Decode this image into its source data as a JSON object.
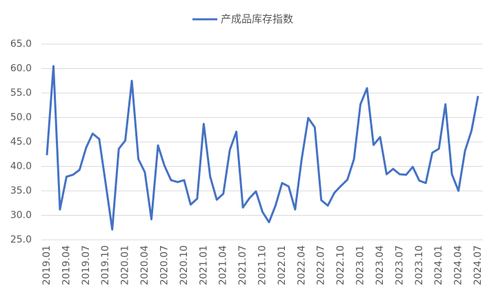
{
  "chart_data": {
    "type": "line",
    "categories": [
      "2019.01",
      null,
      null,
      "2019.04",
      null,
      null,
      "2019.07",
      null,
      null,
      "2019.10",
      null,
      null,
      "2020.01",
      null,
      null,
      "2020.04",
      null,
      null,
      "2020.07",
      null,
      null,
      "2020.10",
      null,
      null,
      "2021.01",
      null,
      null,
      "2021.04",
      null,
      null,
      "2021.07",
      null,
      null,
      "2021.10",
      null,
      null,
      "2022.01",
      null,
      null,
      "2022.04",
      null,
      null,
      "2022.07",
      null,
      null,
      "2022.10",
      null,
      null,
      "2023.01",
      null,
      null,
      "2023.04",
      null,
      null,
      "2023.07",
      null,
      null,
      "2023.10",
      null,
      null,
      "2024.01",
      null,
      null,
      "2024.04",
      null,
      null,
      "2024.07"
    ],
    "series": [
      {
        "name": "产成品库存指数",
        "color": "#4472c4",
        "values": [
          42.3,
          60.5,
          31.2,
          37.9,
          38.3,
          39.3,
          43.8,
          46.7,
          45.6,
          36.5,
          27.1,
          43.6,
          45.3,
          57.5,
          41.5,
          38.8,
          29.2,
          44.3,
          40.1,
          37.2,
          36.8,
          37.2,
          32.2,
          33.4,
          48.7,
          37.9,
          33.2,
          34.4,
          43.4,
          47.1,
          31.6,
          33.5,
          34.9,
          30.7,
          28.6,
          32.0,
          36.6,
          35.9,
          31.2,
          41.5,
          49.9,
          48.0,
          33.1,
          32.0,
          34.6,
          36.0,
          37.3,
          41.5,
          52.7,
          56.0,
          44.4,
          46.0,
          38.4,
          39.5,
          38.4,
          38.3,
          39.9,
          37.1,
          36.6,
          42.8,
          43.6,
          52.7,
          38.4,
          35.0,
          43.2,
          47.3,
          54.4
        ]
      }
    ],
    "ylim": [
      25,
      65
    ],
    "yticks": [
      {
        "value": 25,
        "label": "25.0"
      },
      {
        "value": 30,
        "label": "30.0"
      },
      {
        "value": 35,
        "label": "35.0"
      },
      {
        "value": 40,
        "label": "40.0"
      },
      {
        "value": 45,
        "label": "45.0"
      },
      {
        "value": 50,
        "label": "50.0"
      },
      {
        "value": 55,
        "label": "55.0"
      },
      {
        "value": 60,
        "label": "60.0"
      },
      {
        "value": 65,
        "label": "65.0"
      }
    ],
    "grid": true,
    "legend": "top"
  }
}
